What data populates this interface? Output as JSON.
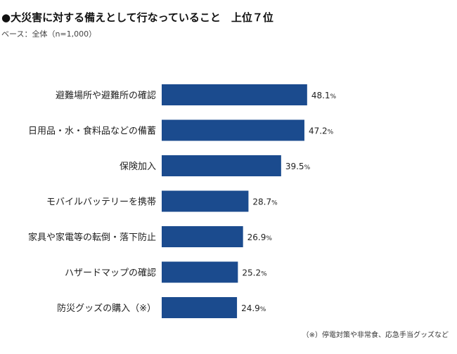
{
  "title": "●大災害に対する備えとして行なっていること　上位７位",
  "subtitle": "ベース：全体（n=1,000）",
  "note": "（※）停電対策や非常食、応急手当グッズなど",
  "colors": {
    "bar": "#1b4b8e"
  },
  "chart_data": {
    "type": "bar",
    "orientation": "horizontal",
    "categories": [
      "避難場所や避難所の確認",
      "日用品・水・食料品などの備蓄",
      "保険加入",
      "モバイルバッテリーを携帯",
      "家具や家電等の転倒・落下防止",
      "ハザードマップの確認",
      "防災グッズの購入（※）"
    ],
    "values": [
      48.1,
      47.2,
      39.5,
      28.7,
      26.9,
      25.2,
      24.9
    ],
    "unit": "%",
    "grid": false
  }
}
